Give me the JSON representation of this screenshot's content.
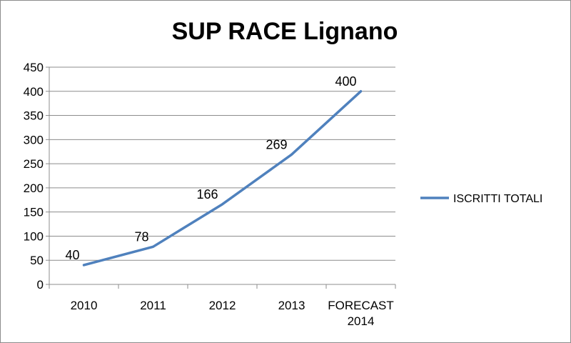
{
  "chart_data": {
    "type": "line",
    "title": "SUP RACE Lignano",
    "xlabel": "",
    "ylabel": "",
    "categories": [
      [
        "2010"
      ],
      [
        "2011"
      ],
      [
        "2012"
      ],
      [
        "2013"
      ],
      [
        "FORECAST",
        "2014"
      ]
    ],
    "series": [
      {
        "name": "ISCRITTI TOTALI",
        "values": [
          40,
          78,
          166,
          269,
          400
        ],
        "color": "#4f81bd"
      }
    ],
    "data_labels": [
      "40",
      "78",
      "166",
      "269",
      "400"
    ],
    "ylim": [
      0,
      450
    ],
    "yticks": [
      0,
      50,
      100,
      150,
      200,
      250,
      300,
      350,
      400,
      450
    ],
    "grid": true,
    "legend_position": "right"
  }
}
